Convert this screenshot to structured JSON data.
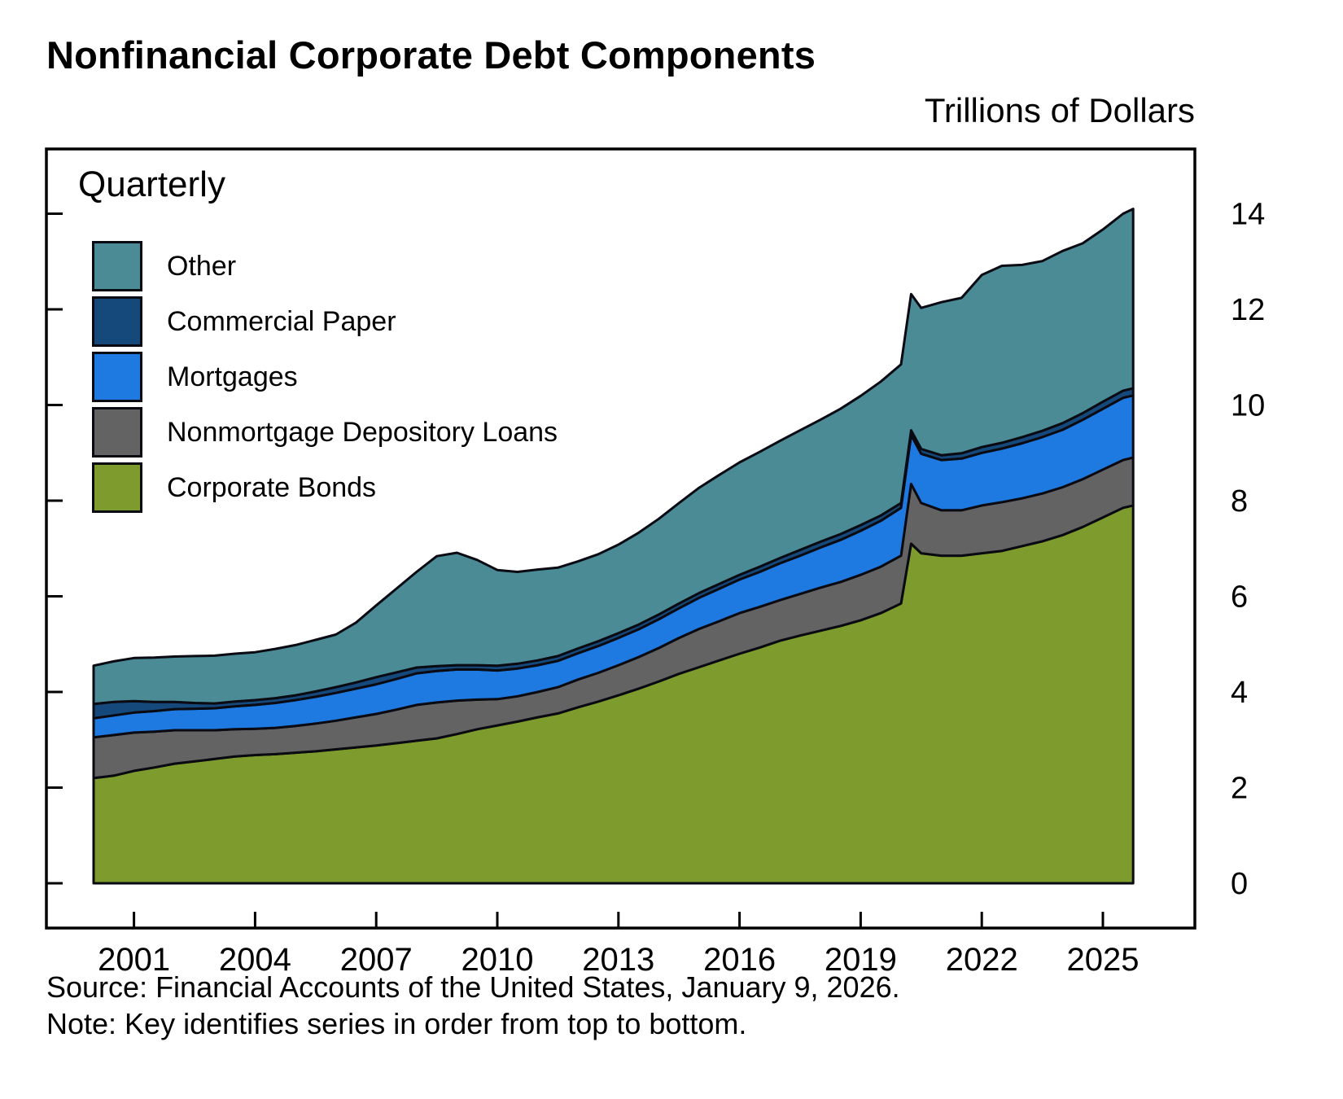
{
  "title": "Nonfinancial Corporate Debt Components",
  "units_label": "Trillions of Dollars",
  "frequency_label": "Quarterly",
  "source_note": "Source: Financial Accounts of the United States, January 9, 2026.",
  "note": "Note: Key identifies series in order from top to bottom.",
  "chart_data": {
    "type": "area",
    "stacked": true,
    "title": "Nonfinancial Corporate Debt Components",
    "ylabel": "Trillions of Dollars",
    "frequency": "Quarterly",
    "legend_position": "upper-left-inside",
    "legend_order_top_to_bottom": [
      "Other",
      "Commercial Paper",
      "Mortgages",
      "Nonmortgage Depository Loans",
      "Corporate Bonds"
    ],
    "outline_color": "#0a0a12",
    "x_ticks": [
      2001,
      2004,
      2007,
      2010,
      2013,
      2016,
      2019,
      2022,
      2025
    ],
    "y_ticks": [
      0,
      2,
      4,
      6,
      8,
      10,
      12,
      14
    ],
    "ylim": [
      0,
      15.3
    ],
    "grid": false,
    "x": [
      2000,
      2000.5,
      2001,
      2001.5,
      2002,
      2002.5,
      2003,
      2003.5,
      2004,
      2004.5,
      2005,
      2005.5,
      2006,
      2006.5,
      2007,
      2007.5,
      2008,
      2008.5,
      2009,
      2009.5,
      2010,
      2010.5,
      2011,
      2011.5,
      2012,
      2012.5,
      2013,
      2013.5,
      2014,
      2014.5,
      2015,
      2015.5,
      2016,
      2016.5,
      2017,
      2017.5,
      2018,
      2018.5,
      2019,
      2019.5,
      2020,
      2020.25,
      2020.5,
      2021,
      2021.5,
      2022,
      2022.5,
      2023,
      2023.5,
      2024,
      2024.5,
      2025,
      2025.5,
      2025.75
    ],
    "series": [
      {
        "name": "Corporate Bonds",
        "color": "#7e9b2d",
        "values": [
          2.2,
          2.25,
          2.35,
          2.42,
          2.5,
          2.55,
          2.6,
          2.65,
          2.68,
          2.7,
          2.73,
          2.76,
          2.8,
          2.84,
          2.88,
          2.93,
          2.98,
          3.03,
          3.12,
          3.22,
          3.3,
          3.38,
          3.47,
          3.55,
          3.68,
          3.8,
          3.93,
          4.07,
          4.22,
          4.38,
          4.52,
          4.66,
          4.8,
          4.93,
          5.07,
          5.18,
          5.28,
          5.38,
          5.5,
          5.65,
          5.85,
          7.1,
          6.9,
          6.85,
          6.85,
          6.9,
          6.95,
          7.05,
          7.15,
          7.28,
          7.45,
          7.65,
          7.85,
          7.9
        ]
      },
      {
        "name": "Nonmortgage Depository Loans",
        "color": "#636363",
        "values": [
          0.85,
          0.85,
          0.8,
          0.75,
          0.7,
          0.65,
          0.6,
          0.57,
          0.55,
          0.55,
          0.56,
          0.58,
          0.6,
          0.63,
          0.66,
          0.7,
          0.75,
          0.75,
          0.7,
          0.62,
          0.55,
          0.53,
          0.53,
          0.55,
          0.58,
          0.6,
          0.63,
          0.66,
          0.7,
          0.75,
          0.8,
          0.82,
          0.85,
          0.85,
          0.85,
          0.87,
          0.9,
          0.92,
          0.95,
          0.97,
          1.0,
          1.25,
          1.05,
          0.95,
          0.95,
          1.0,
          1.02,
          1.0,
          1.0,
          1.0,
          1.0,
          1.0,
          1.0,
          1.0
        ]
      },
      {
        "name": "Mortgages",
        "color": "#1e7ae0",
        "values": [
          0.4,
          0.41,
          0.42,
          0.43,
          0.44,
          0.45,
          0.46,
          0.48,
          0.5,
          0.52,
          0.54,
          0.56,
          0.58,
          0.6,
          0.62,
          0.64,
          0.66,
          0.66,
          0.65,
          0.63,
          0.6,
          0.58,
          0.56,
          0.55,
          0.55,
          0.56,
          0.57,
          0.58,
          0.6,
          0.62,
          0.65,
          0.68,
          0.7,
          0.73,
          0.77,
          0.8,
          0.84,
          0.88,
          0.92,
          0.96,
          1.0,
          1.02,
          1.03,
          1.05,
          1.08,
          1.1,
          1.12,
          1.15,
          1.18,
          1.2,
          1.24,
          1.27,
          1.3,
          1.3
        ]
      },
      {
        "name": "Commercial Paper",
        "color": "#16497b",
        "values": [
          0.3,
          0.28,
          0.24,
          0.19,
          0.15,
          0.12,
          0.1,
          0.1,
          0.1,
          0.1,
          0.1,
          0.11,
          0.12,
          0.13,
          0.15,
          0.14,
          0.12,
          0.1,
          0.09,
          0.09,
          0.1,
          0.1,
          0.1,
          0.1,
          0.1,
          0.1,
          0.1,
          0.1,
          0.1,
          0.1,
          0.1,
          0.1,
          0.1,
          0.11,
          0.11,
          0.12,
          0.12,
          0.12,
          0.12,
          0.11,
          0.1,
          0.1,
          0.1,
          0.1,
          0.11,
          0.12,
          0.12,
          0.13,
          0.13,
          0.14,
          0.14,
          0.15,
          0.15,
          0.15
        ]
      },
      {
        "name": "Other",
        "color": "#4a8b96",
        "values": [
          0.8,
          0.85,
          0.9,
          0.93,
          0.95,
          0.98,
          1.0,
          1.0,
          1.0,
          1.03,
          1.05,
          1.08,
          1.1,
          1.25,
          1.5,
          1.75,
          2.0,
          2.3,
          2.35,
          2.2,
          2.0,
          1.92,
          1.9,
          1.85,
          1.82,
          1.82,
          1.85,
          1.92,
          2.0,
          2.1,
          2.2,
          2.28,
          2.35,
          2.4,
          2.45,
          2.5,
          2.55,
          2.62,
          2.7,
          2.8,
          2.9,
          2.85,
          2.95,
          3.2,
          3.25,
          3.6,
          3.7,
          3.6,
          3.55,
          3.6,
          3.55,
          3.6,
          3.7,
          3.75
        ]
      }
    ]
  }
}
